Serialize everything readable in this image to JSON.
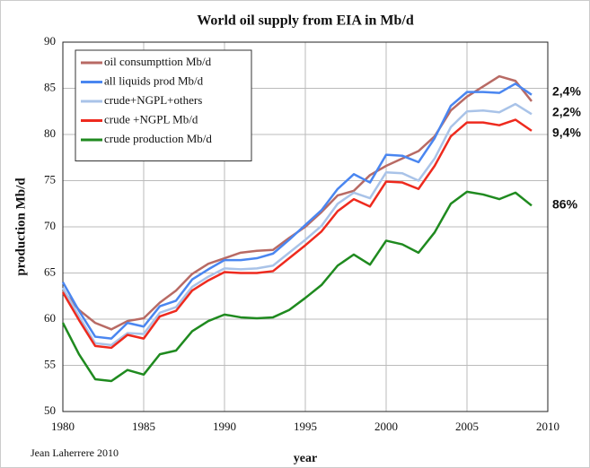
{
  "chart_data": {
    "type": "line",
    "title": "World oil supply from EIA in Mb/d",
    "x_label": "year",
    "y_label": "production Mb/d",
    "credit": "Jean Laherrere 2010",
    "x": [
      1980,
      1981,
      1982,
      1983,
      1984,
      1985,
      1986,
      1987,
      1988,
      1989,
      1990,
      1991,
      1992,
      1993,
      1994,
      1995,
      1996,
      1997,
      1998,
      1999,
      2000,
      2001,
      2002,
      2003,
      2004,
      2005,
      2006,
      2007,
      2008,
      2009
    ],
    "series": [
      {
        "name": "oil consumpttion Mb/d",
        "color": "#b86a64",
        "values": [
          63.1,
          61.0,
          59.6,
          58.9,
          59.8,
          60.1,
          61.8,
          63.1,
          64.9,
          66.0,
          66.6,
          67.2,
          67.4,
          67.5,
          68.8,
          70.0,
          71.6,
          73.4,
          73.9,
          75.6,
          76.6,
          77.4,
          78.2,
          79.8,
          82.6,
          84.1,
          85.2,
          86.3,
          85.8,
          83.6
        ]
      },
      {
        "name": "all liquids prod Mb/d",
        "color": "#4a86f0",
        "values": [
          64.0,
          60.9,
          58.1,
          57.9,
          59.6,
          59.2,
          61.4,
          62.0,
          64.3,
          65.4,
          66.4,
          66.4,
          66.6,
          67.1,
          68.6,
          70.2,
          71.8,
          74.1,
          75.7,
          74.8,
          77.8,
          77.7,
          77.0,
          79.6,
          83.1,
          84.6,
          84.6,
          84.5,
          85.5,
          84.3
        ]
      },
      {
        "name": "crude+NGPL+others",
        "color": "#a9c3e8",
        "values": [
          63.4,
          60.3,
          57.4,
          57.2,
          58.5,
          58.4,
          60.7,
          61.3,
          63.5,
          64.6,
          65.5,
          65.4,
          65.5,
          65.8,
          67.2,
          68.6,
          70.1,
          72.5,
          73.7,
          73.1,
          75.9,
          75.8,
          75.0,
          77.4,
          80.8,
          82.5,
          82.6,
          82.4,
          83.3,
          82.2
        ]
      },
      {
        "name": "crude +NGPL Mb/d",
        "color": "#ee2a1e",
        "values": [
          62.9,
          59.9,
          57.1,
          56.9,
          58.3,
          57.9,
          60.3,
          60.9,
          63.1,
          64.2,
          65.1,
          65.0,
          65.0,
          65.2,
          66.6,
          68.0,
          69.5,
          71.7,
          73.0,
          72.2,
          74.9,
          74.8,
          74.1,
          76.6,
          79.8,
          81.3,
          81.3,
          81.0,
          81.6,
          80.4
        ]
      },
      {
        "name": "crude production Mb/d",
        "color": "#1f8a1f",
        "values": [
          59.6,
          56.2,
          53.5,
          53.3,
          54.5,
          54.0,
          56.2,
          56.6,
          58.7,
          59.8,
          60.5,
          60.2,
          60.1,
          60.2,
          61.0,
          62.3,
          63.7,
          65.8,
          67.0,
          65.9,
          68.5,
          68.1,
          67.2,
          69.4,
          72.5,
          73.8,
          73.5,
          73.0,
          73.7,
          72.3
        ]
      }
    ],
    "annotations": [
      {
        "text": "2,4%",
        "color": "#2f6fe8"
      },
      {
        "text": "2,2%",
        "color": "#b7cdee"
      },
      {
        "text": "9,4%",
        "color": "#e8201a"
      },
      {
        "text": "86%",
        "color": "#1f8a1f"
      }
    ],
    "xlim": [
      1980,
      2010
    ],
    "xticks": [
      1980,
      1985,
      1990,
      1995,
      2000,
      2005,
      2010
    ],
    "ylim": [
      50,
      90
    ],
    "yticks": [
      50,
      55,
      60,
      65,
      70,
      75,
      80,
      85,
      90
    ],
    "grid": true,
    "legend": "upper left"
  }
}
